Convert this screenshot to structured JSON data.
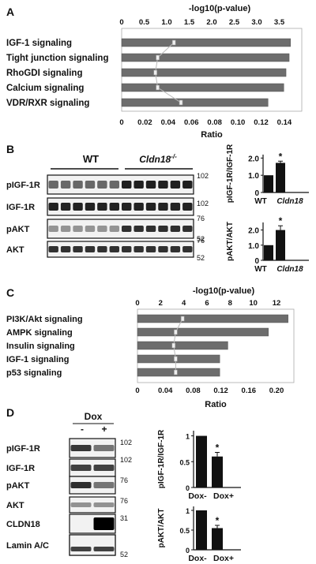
{
  "panels": {
    "A": {
      "letter": "A",
      "chart_data": {
        "type": "bar",
        "top_axis_label": "-log10(p-value)",
        "top_ticks": [
          "0",
          "0.5",
          "1.0",
          "1.5",
          "2.0",
          "2.5",
          "3.0",
          "3.5"
        ],
        "top_range": [
          0,
          4.0
        ],
        "bottom_axis_label": "Ratio",
        "bottom_ticks": [
          "0",
          "0.02",
          "0.04",
          "0.06",
          "0.08",
          "0.10",
          "0.12",
          "0.14"
        ],
        "bottom_range": [
          0,
          0.155
        ],
        "categories": [
          "IGF-1 signaling",
          "Tight junction signaling",
          "RhoGDI signaling",
          "Calcium signaling",
          "VDR/RXR signaling"
        ],
        "values": [
          3.75,
          3.72,
          3.65,
          3.6,
          3.25
        ],
        "ratio": [
          0.045,
          0.031,
          0.029,
          0.031,
          0.051
        ]
      }
    },
    "B": {
      "letter": "B",
      "group_labels": [
        "WT",
        "Cldn18"
      ],
      "ko_superscript": "-/-",
      "blots": [
        {
          "label": "pIGF-1R",
          "markers": [
            "102"
          ]
        },
        {
          "label": "IGF-1R",
          "markers": [
            "102"
          ]
        },
        {
          "label": "pAKT",
          "markers": [
            "76",
            "52"
          ]
        },
        {
          "label": "AKT",
          "markers": [
            "76",
            "52"
          ]
        }
      ],
      "charts": [
        {
          "ylabel": "pIGF-1R/IGF-1R",
          "yticks": [
            "0",
            "1.0",
            "2.0"
          ],
          "ylim": [
            0,
            2.2
          ],
          "categories": [
            "WT",
            "Cldn18"
          ],
          "values": [
            1.0,
            1.72
          ],
          "errors": [
            0,
            0.1
          ],
          "sig": [
            "",
            "*"
          ]
        },
        {
          "ylabel": "pAKT/AKT",
          "yticks": [
            "0",
            "1.0",
            "2.0"
          ],
          "ylim": [
            0,
            2.5
          ],
          "categories": [
            "WT",
            "Cldn18"
          ],
          "values": [
            1.0,
            2.0
          ],
          "errors": [
            0,
            0.28
          ],
          "sig": [
            "",
            "*"
          ]
        }
      ]
    },
    "C": {
      "letter": "C",
      "chart_data": {
        "type": "bar",
        "top_axis_label": "-log10(p-value)",
        "top_ticks": [
          "0",
          "2",
          "4",
          "6",
          "8",
          "10",
          "12"
        ],
        "top_range": [
          0,
          13.5
        ],
        "bottom_axis_label": "Ratio",
        "bottom_ticks": [
          "0",
          "0.04",
          "0.08",
          "0.12",
          "0.16",
          "0.20"
        ],
        "bottom_range": [
          0,
          0.225
        ],
        "categories": [
          "PI3K/Akt signaling",
          "AMPK signaling",
          "Insulin signaling",
          "IGF-1 signaling",
          "p53 signaling"
        ],
        "values": [
          13.0,
          11.3,
          7.8,
          7.1,
          7.1
        ],
        "ratio": [
          0.065,
          0.055,
          0.052,
          0.055,
          0.055
        ]
      }
    },
    "D": {
      "letter": "D",
      "dox_label": "Dox",
      "lane_signs": [
        "-",
        "+"
      ],
      "blots": [
        {
          "label": "pIGF-1R",
          "markers": [
            "102"
          ]
        },
        {
          "label": "IGF-1R",
          "markers": [
            "102"
          ]
        },
        {
          "label": "pAKT",
          "markers": [
            "76"
          ]
        },
        {
          "label": "AKT",
          "markers": [
            "76"
          ]
        },
        {
          "label": "CLDN18",
          "markers": [
            "31"
          ]
        },
        {
          "label": "Lamin A/C",
          "markers": [
            "52"
          ]
        }
      ],
      "charts": [
        {
          "ylabel": "pIGF-1R/IGF-1R",
          "yticks": [
            "0",
            "0.5",
            "1"
          ],
          "ylim": [
            0,
            1.1
          ],
          "categories": [
            "Dox-",
            "Dox+"
          ],
          "values": [
            1.0,
            0.6
          ],
          "errors": [
            0,
            0.08
          ],
          "sig": [
            "",
            "*"
          ]
        },
        {
          "ylabel": "pAKT/AKT",
          "yticks": [
            "0",
            "0.5",
            "1"
          ],
          "ylim": [
            0,
            1.1
          ],
          "categories": [
            "Dox-",
            "Dox+"
          ],
          "values": [
            1.0,
            0.55
          ],
          "errors": [
            0,
            0.07
          ],
          "sig": [
            "",
            "*"
          ]
        }
      ]
    }
  }
}
